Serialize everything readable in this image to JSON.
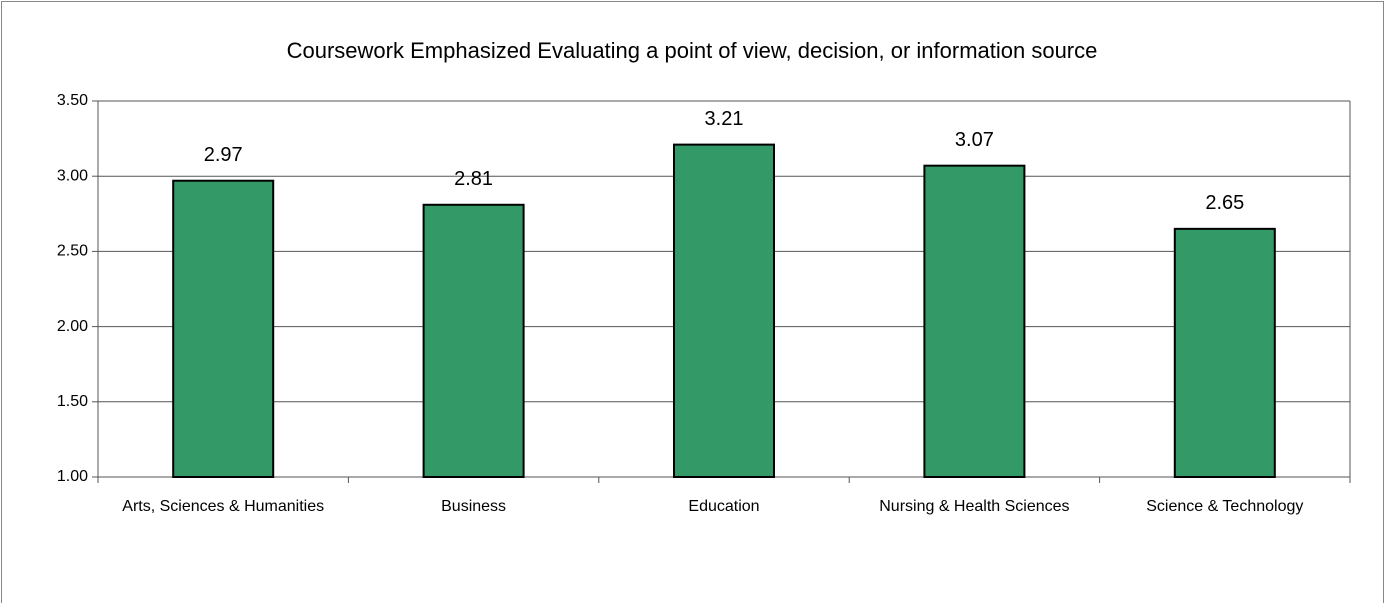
{
  "chart_data": {
    "type": "bar",
    "title": "Coursework Emphasized Evaluating a point of view, decision, or information source",
    "categories": [
      "Arts, Sciences & Humanities",
      "Business",
      "Education",
      "Nursing & Health Sciences",
      "Science & Technology"
    ],
    "values": [
      2.97,
      2.81,
      3.21,
      3.07,
      2.65
    ],
    "color": "#339966",
    "ylim": [
      1,
      3.5
    ],
    "yticks": [
      {
        "value": 1,
        "label": "1.00"
      },
      {
        "value": 1.5,
        "label": "1.50"
      },
      {
        "value": 2,
        "label": "2.00"
      },
      {
        "value": 2.5,
        "label": "2.50"
      },
      {
        "value": 3,
        "label": "3.00"
      },
      {
        "value": 3.5,
        "label": "3.50"
      }
    ],
    "grid": true
  }
}
